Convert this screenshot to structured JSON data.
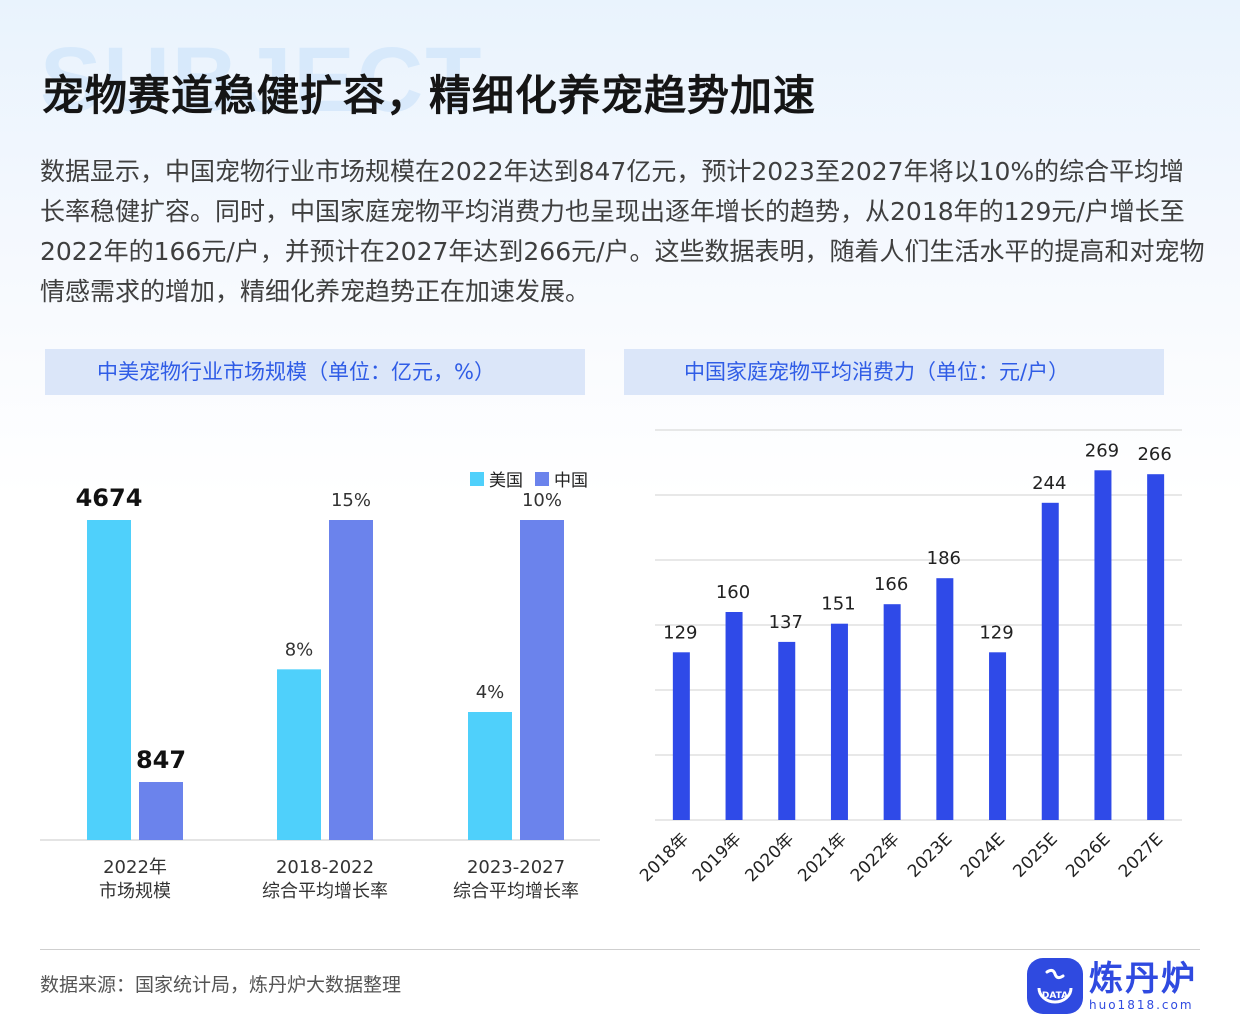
{
  "background_word": "SUBJECT",
  "title": "宠物赛道稳健扩容，精细化养宠趋势加速",
  "description": "数据显示，中国宠物行业市场规模在2022年达到847亿元，预计2023至2027年将以10%的综合平均增长率稳健扩容。同时，中国家庭宠物平均消费力也呈现出逐年增长的趋势，从2018年的129元/户增长至2022年的166元/户，并预计在2027年达到266元/户。这些数据表明，随着人们生活水平的提高和对宠物情感需求的增加，精细化养宠趋势正在加速发展。",
  "chart_data": [
    {
      "type": "bar",
      "title": "中美宠物行业市场规模（单位：亿元，%）",
      "categories": [
        [
          "2022年",
          "市场规模"
        ],
        [
          "2018-2022",
          "综合平均增长率"
        ],
        [
          "2023-2027",
          "综合平均增长率"
        ]
      ],
      "series": [
        {
          "name": "美国",
          "color": "#4fd0fb",
          "values": [
            4674,
            8,
            4
          ],
          "labels": [
            "4674",
            "8%",
            "4%"
          ]
        },
        {
          "name": "中国",
          "color": "#6b83ec",
          "values": [
            847,
            15,
            10
          ],
          "labels": [
            "847",
            "15%",
            "10%"
          ]
        }
      ],
      "legend_position": "top-right",
      "grid": false
    },
    {
      "type": "bar",
      "title": "中国家庭宠物平均消费力（单位：元/户）",
      "categories": [
        "2018年",
        "2019年",
        "2020年",
        "2021年",
        "2022年",
        "2023E",
        "2024E",
        "2025E",
        "2026E",
        "2027E"
      ],
      "values": [
        129,
        160,
        137,
        151,
        166,
        186,
        129,
        244,
        269,
        266
      ],
      "color": "#2f4ae8",
      "ylim": [
        0,
        300
      ],
      "grid": true
    }
  ],
  "source": "数据来源：国家统计局，炼丹炉大数据整理",
  "logo": {
    "name": "炼丹炉",
    "url": "huo1818.com",
    "mark_text": "DATA"
  }
}
